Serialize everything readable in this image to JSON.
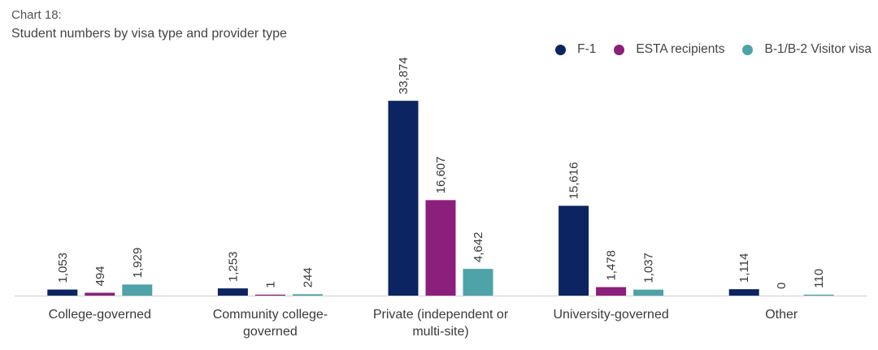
{
  "header": {
    "chart_label": "Chart 18:",
    "title": "Student numbers by visa type and provider type"
  },
  "chart_data": {
    "type": "bar",
    "categories": [
      [
        "College-governed"
      ],
      [
        "Community college-",
        "governed"
      ],
      [
        "Private (independent or",
        "multi-site)"
      ],
      [
        "University-governed"
      ],
      [
        "Other"
      ]
    ],
    "series": [
      {
        "name": "F-1",
        "color": "#0c2461",
        "values": [
          1053,
          1253,
          33874,
          15616,
          1114
        ],
        "labels": [
          "1,053",
          "1,253",
          "33,874",
          "15,616",
          "1,114"
        ]
      },
      {
        "name": "ESTA recipients",
        "color": "#8b1f7b",
        "values": [
          494,
          1,
          16607,
          1478,
          0
        ],
        "labels": [
          "494",
          "1",
          "16,607",
          "1,478",
          "0"
        ]
      },
      {
        "name": "B-1/B-2 Visitor visa",
        "color": "#4ea3a8",
        "values": [
          1929,
          244,
          4642,
          1037,
          110
        ],
        "labels": [
          "1,929",
          "244",
          "4,642",
          "1,037",
          "110"
        ]
      }
    ],
    "ylim": [
      0,
      37000
    ],
    "grid": false,
    "legend_position": "top-right"
  }
}
